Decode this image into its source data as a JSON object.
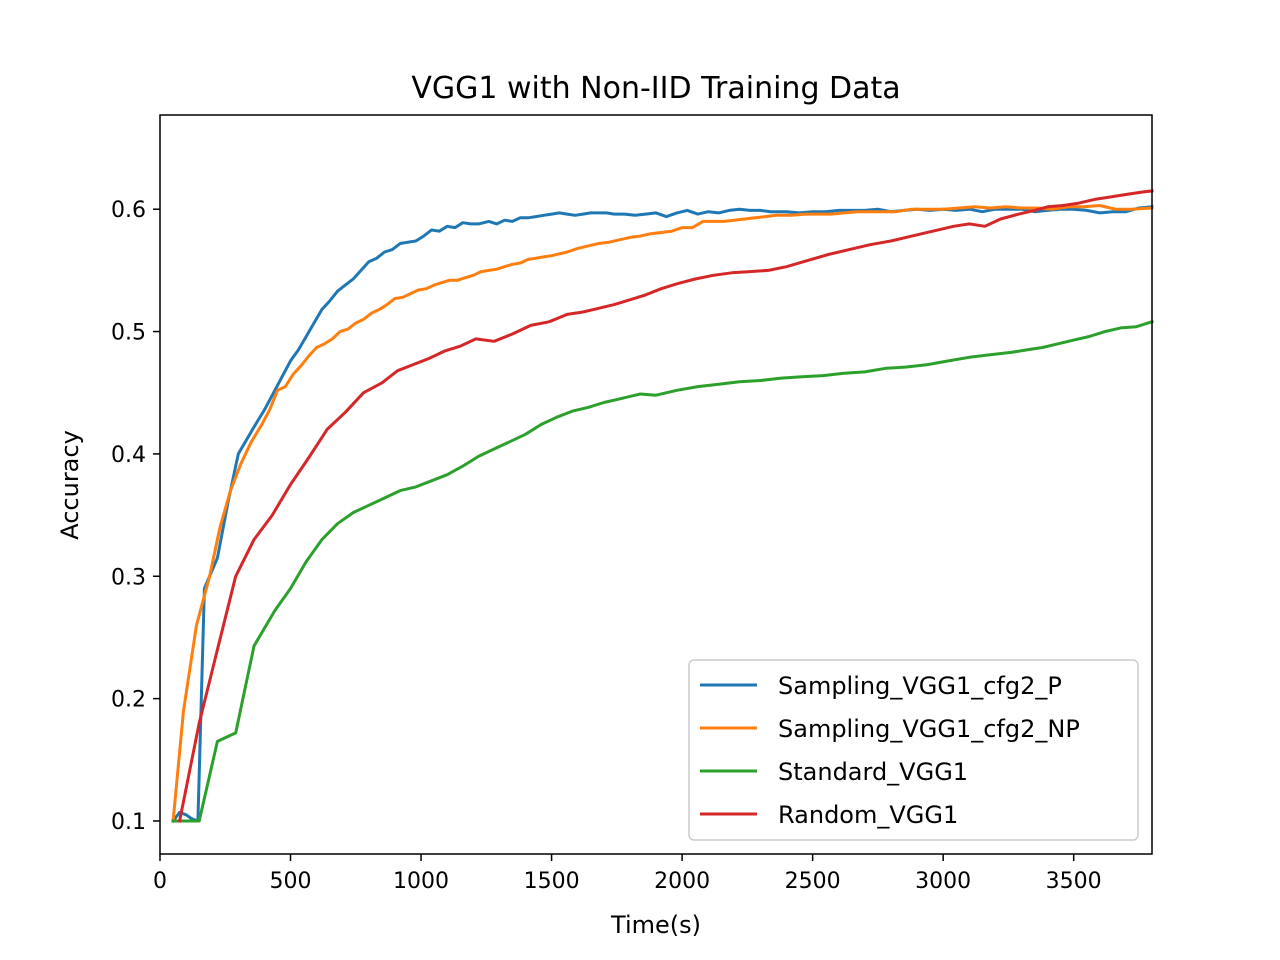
{
  "chart_data": {
    "type": "line",
    "title": "VGG1 with Non-IID Training Data",
    "xlabel": "Time(s)",
    "ylabel": "Accuracy",
    "xlim": [
      0,
      3800
    ],
    "ylim": [
      0.073,
      0.677
    ],
    "xticks": [
      0,
      500,
      1000,
      1500,
      2000,
      2500,
      3000,
      3500
    ],
    "yticks": [
      0.1,
      0.2,
      0.3,
      0.4,
      0.5,
      0.6
    ],
    "legend_position": "lower-right",
    "grid": false,
    "series": [
      {
        "name": "Sampling_VGG1_cfg2_P",
        "color": "#1f77b4",
        "x": [
          50,
          75,
          100,
          120,
          145,
          170,
          220,
          260,
          300,
          360,
          400,
          440,
          470,
          500,
          530,
          560,
          590,
          620,
          650,
          680,
          710,
          740,
          770,
          800,
          830,
          860,
          890,
          920,
          950,
          980,
          1010,
          1040,
          1070,
          1100,
          1130,
          1160,
          1190,
          1220,
          1260,
          1290,
          1320,
          1350,
          1380,
          1410,
          1440,
          1470,
          1500,
          1530,
          1560,
          1590,
          1620,
          1650,
          1680,
          1710,
          1740,
          1780,
          1820,
          1860,
          1900,
          1940,
          1980,
          2020,
          2060,
          2100,
          2140,
          2180,
          2220,
          2260,
          2300,
          2340,
          2400,
          2450,
          2500,
          2550,
          2600,
          2650,
          2700,
          2750,
          2800,
          2850,
          2900,
          2950,
          3000,
          3050,
          3100,
          3150,
          3200,
          3250,
          3300,
          3350,
          3400,
          3450,
          3500,
          3550,
          3600,
          3650,
          3700,
          3750,
          3800
        ],
        "y": [
          0.1,
          0.107,
          0.105,
          0.102,
          0.1,
          0.29,
          0.315,
          0.36,
          0.4,
          0.422,
          0.436,
          0.452,
          0.464,
          0.476,
          0.485,
          0.496,
          0.507,
          0.518,
          0.525,
          0.533,
          0.538,
          0.543,
          0.55,
          0.557,
          0.56,
          0.565,
          0.567,
          0.572,
          0.573,
          0.574,
          0.578,
          0.583,
          0.582,
          0.586,
          0.585,
          0.589,
          0.588,
          0.588,
          0.59,
          0.588,
          0.591,
          0.59,
          0.593,
          0.593,
          0.594,
          0.595,
          0.596,
          0.597,
          0.596,
          0.595,
          0.596,
          0.597,
          0.597,
          0.597,
          0.596,
          0.596,
          0.595,
          0.596,
          0.597,
          0.594,
          0.597,
          0.599,
          0.596,
          0.598,
          0.597,
          0.599,
          0.6,
          0.599,
          0.599,
          0.598,
          0.598,
          0.597,
          0.598,
          0.598,
          0.599,
          0.599,
          0.599,
          0.6,
          0.598,
          0.599,
          0.6,
          0.599,
          0.6,
          0.599,
          0.6,
          0.598,
          0.6,
          0.6,
          0.6,
          0.598,
          0.599,
          0.6,
          0.6,
          0.599,
          0.597,
          0.598,
          0.598,
          0.601,
          0.602
        ]
      },
      {
        "name": "Sampling_VGG1_cfg2_NP",
        "color": "#ff7f0e",
        "x": [
          50,
          90,
          140,
          190,
          230,
          270,
          310,
          350,
          390,
          420,
          450,
          480,
          510,
          540,
          570,
          600,
          630,
          660,
          690,
          720,
          750,
          780,
          810,
          840,
          870,
          900,
          930,
          960,
          990,
          1020,
          1050,
          1080,
          1110,
          1140,
          1170,
          1200,
          1230,
          1260,
          1290,
          1320,
          1350,
          1380,
          1410,
          1440,
          1470,
          1500,
          1560,
          1600,
          1640,
          1680,
          1720,
          1760,
          1800,
          1840,
          1880,
          1920,
          1960,
          2000,
          2040,
          2080,
          2120,
          2160,
          2200,
          2240,
          2280,
          2320,
          2360,
          2420,
          2470,
          2520,
          2570,
          2620,
          2670,
          2720,
          2770,
          2820,
          2880,
          2940,
          3000,
          3060,
          3120,
          3180,
          3240,
          3300,
          3360,
          3420,
          3480,
          3540,
          3600,
          3660,
          3720,
          3800
        ],
        "y": [
          0.1,
          0.19,
          0.26,
          0.3,
          0.34,
          0.37,
          0.392,
          0.41,
          0.424,
          0.436,
          0.452,
          0.455,
          0.465,
          0.472,
          0.48,
          0.487,
          0.49,
          0.494,
          0.5,
          0.502,
          0.507,
          0.51,
          0.515,
          0.518,
          0.522,
          0.527,
          0.528,
          0.531,
          0.534,
          0.535,
          0.538,
          0.54,
          0.542,
          0.542,
          0.544,
          0.546,
          0.549,
          0.55,
          0.551,
          0.553,
          0.555,
          0.556,
          0.559,
          0.56,
          0.561,
          0.562,
          0.565,
          0.568,
          0.57,
          0.572,
          0.573,
          0.575,
          0.577,
          0.578,
          0.58,
          0.581,
          0.582,
          0.585,
          0.585,
          0.59,
          0.59,
          0.59,
          0.591,
          0.592,
          0.593,
          0.594,
          0.595,
          0.595,
          0.596,
          0.596,
          0.596,
          0.597,
          0.598,
          0.598,
          0.598,
          0.598,
          0.6,
          0.6,
          0.6,
          0.601,
          0.602,
          0.601,
          0.602,
          0.601,
          0.601,
          0.6,
          0.602,
          0.602,
          0.603,
          0.6,
          0.6,
          0.601
        ]
      },
      {
        "name": "Standard_VGG1",
        "color": "#2ca02c",
        "x": [
          50,
          100,
          150,
          220,
          290,
          360,
          440,
          500,
          560,
          620,
          680,
          740,
          800,
          860,
          920,
          980,
          1040,
          1100,
          1160,
          1220,
          1280,
          1340,
          1400,
          1460,
          1520,
          1580,
          1640,
          1700,
          1760,
          1840,
          1900,
          1980,
          2060,
          2140,
          2220,
          2300,
          2380,
          2460,
          2540,
          2620,
          2700,
          2780,
          2860,
          2940,
          3020,
          3100,
          3180,
          3260,
          3320,
          3380,
          3440,
          3500,
          3560,
          3620,
          3680,
          3740,
          3800
        ],
        "y": [
          0.1,
          0.1,
          0.1,
          0.165,
          0.172,
          0.243,
          0.272,
          0.29,
          0.312,
          0.33,
          0.343,
          0.352,
          0.358,
          0.364,
          0.37,
          0.373,
          0.378,
          0.383,
          0.39,
          0.398,
          0.404,
          0.41,
          0.416,
          0.424,
          0.43,
          0.435,
          0.438,
          0.442,
          0.445,
          0.449,
          0.448,
          0.452,
          0.455,
          0.457,
          0.459,
          0.46,
          0.462,
          0.463,
          0.464,
          0.466,
          0.467,
          0.47,
          0.471,
          0.473,
          0.476,
          0.479,
          0.481,
          0.483,
          0.485,
          0.487,
          0.49,
          0.493,
          0.496,
          0.5,
          0.503,
          0.504,
          0.508
        ]
      },
      {
        "name": "Random_VGG1",
        "color": "#d62728",
        "x": [
          75,
          150,
          220,
          290,
          360,
          430,
          500,
          570,
          640,
          710,
          780,
          850,
          910,
          970,
          1030,
          1090,
          1150,
          1210,
          1280,
          1350,
          1420,
          1490,
          1560,
          1620,
          1680,
          1740,
          1800,
          1860,
          1920,
          1980,
          2050,
          2120,
          2190,
          2260,
          2330,
          2400,
          2480,
          2560,
          2640,
          2720,
          2800,
          2880,
          2960,
          3040,
          3100,
          3160,
          3220,
          3290,
          3350,
          3400,
          3460,
          3520,
          3580,
          3640,
          3700,
          3760,
          3800
        ],
        "y": [
          0.1,
          0.18,
          0.24,
          0.3,
          0.33,
          0.35,
          0.375,
          0.397,
          0.42,
          0.434,
          0.45,
          0.458,
          0.468,
          0.473,
          0.478,
          0.484,
          0.488,
          0.494,
          0.492,
          0.498,
          0.505,
          0.508,
          0.514,
          0.516,
          0.519,
          0.522,
          0.526,
          0.53,
          0.535,
          0.539,
          0.543,
          0.546,
          0.548,
          0.549,
          0.55,
          0.553,
          0.558,
          0.563,
          0.567,
          0.571,
          0.574,
          0.578,
          0.582,
          0.586,
          0.588,
          0.586,
          0.592,
          0.596,
          0.599,
          0.602,
          0.603,
          0.605,
          0.608,
          0.61,
          0.612,
          0.614,
          0.615
        ]
      }
    ]
  }
}
